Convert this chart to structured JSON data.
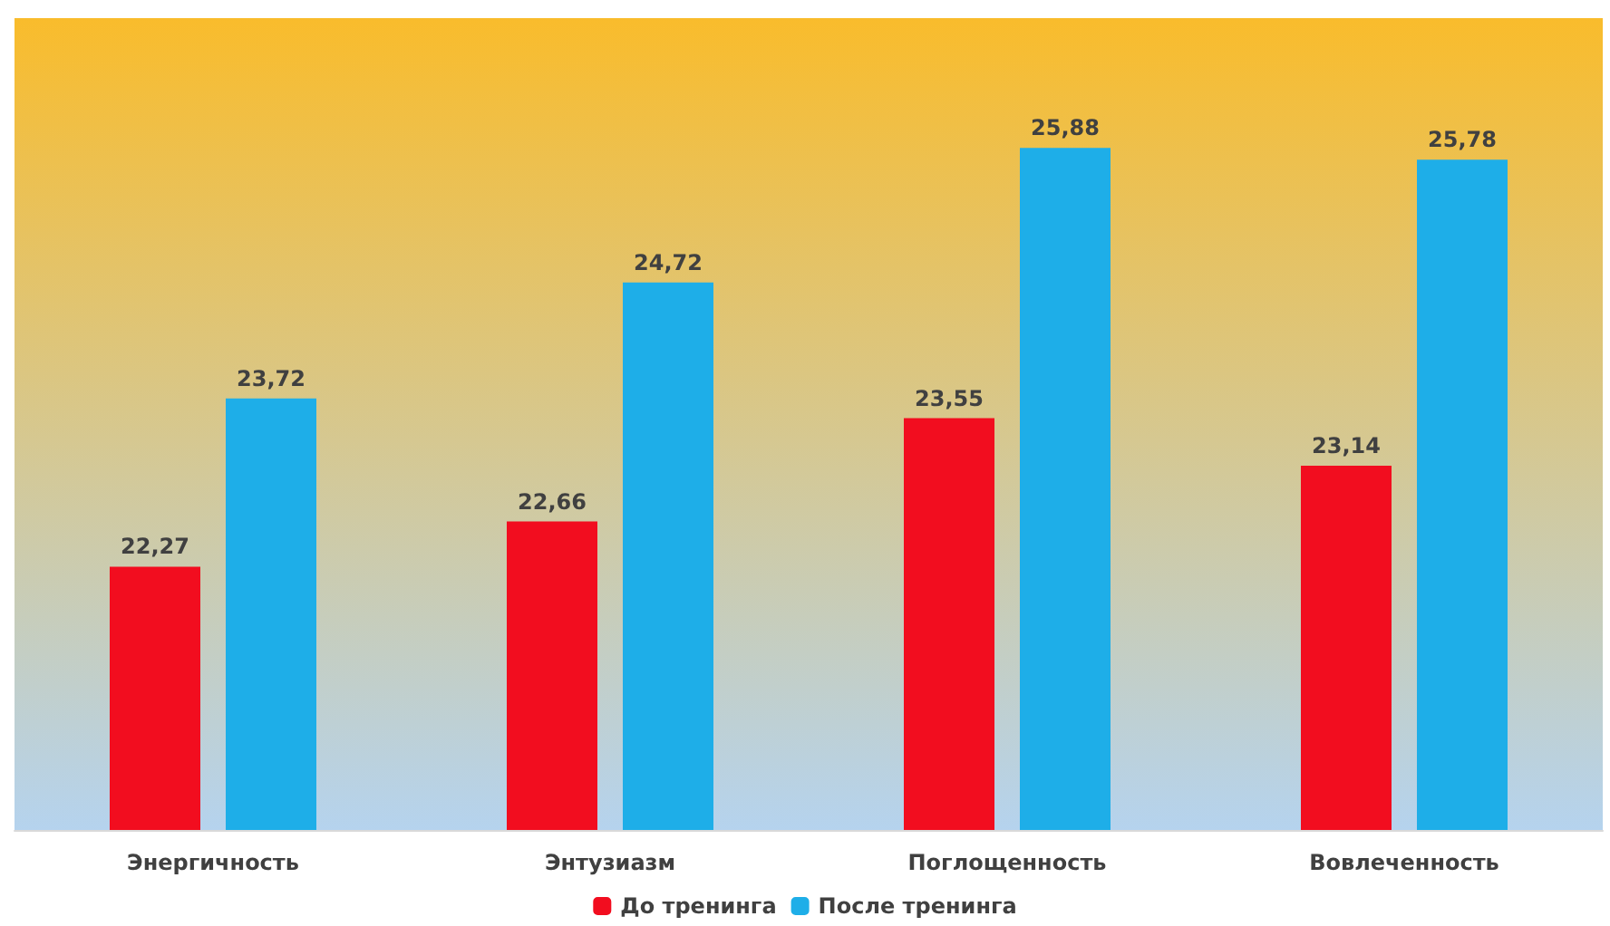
{
  "chart_data": {
    "type": "bar",
    "categories": [
      "Энергичность",
      "Энтузиазм",
      "Поглощенность",
      "Вовлеченность"
    ],
    "series": [
      {
        "name": "До тренинга",
        "color": "#f20d1f",
        "values": [
          22.27,
          22.66,
          23.55,
          23.14
        ],
        "value_labels": [
          "22,27",
          "22,66",
          "23,55",
          "23,14"
        ]
      },
      {
        "name": "После тренинга",
        "color": "#1eaee8",
        "values": [
          23.72,
          24.72,
          25.88,
          25.78
        ],
        "value_labels": [
          "23,72",
          "24,72",
          "25,88",
          "25,78"
        ]
      }
    ],
    "ylim": [
      20,
      27
    ],
    "tick_labels": "x",
    "legend": "bottom"
  }
}
